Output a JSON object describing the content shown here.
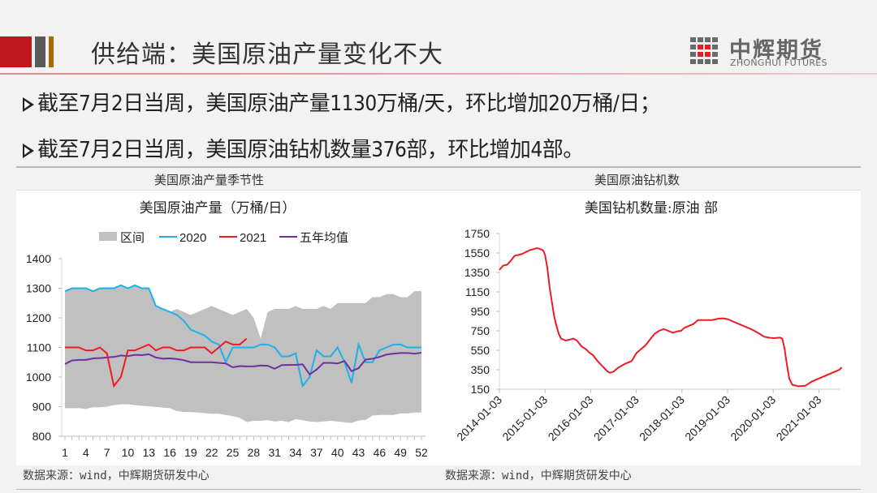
{
  "header": {
    "title": "供给端：美国原油产量变化不大",
    "logo_cn": "中辉期货",
    "logo_en": "ZHONGHUI FUTURES",
    "accent_colors": {
      "red": "#c0151c",
      "gray": "#595959",
      "gold": "#a46a00"
    }
  },
  "bullets": [
    {
      "text": "截至7月2日当周，美国原油产量1130万桶/天，环比增加20万桶/日；"
    },
    {
      "text": "截至7月2日当周，美国原油钻机数量376部，环比增加4部。"
    }
  ],
  "captions": {
    "left": "美国原油产量季节性",
    "right": "美国原油钻机数"
  },
  "sources": {
    "left": "数据来源：wind，中辉期货研发中心",
    "right": "数据来源：wind，中辉期货研发中心"
  },
  "chart_data": [
    {
      "type": "line",
      "title": "美国原油产量（万桶/日）",
      "xlabel": "",
      "ylabel": "",
      "ylim": [
        800,
        1400
      ],
      "yticks": [
        800,
        900,
        1000,
        1100,
        1200,
        1300,
        1400
      ],
      "xticks": [
        1,
        4,
        7,
        10,
        13,
        16,
        19,
        22,
        25,
        28,
        31,
        34,
        37,
        40,
        43,
        46,
        49,
        52
      ],
      "legend": [
        "区间",
        "2020",
        "2021",
        "五年均值"
      ],
      "legend_position": "top",
      "grid": false,
      "x": [
        1,
        2,
        3,
        4,
        5,
        6,
        7,
        8,
        9,
        10,
        11,
        12,
        13,
        14,
        15,
        16,
        17,
        18,
        19,
        20,
        21,
        22,
        23,
        24,
        25,
        26,
        27,
        28,
        29,
        30,
        31,
        32,
        33,
        34,
        35,
        36,
        37,
        38,
        39,
        40,
        41,
        42,
        43,
        44,
        45,
        46,
        47,
        48,
        49,
        50,
        51,
        52
      ],
      "range_band": {
        "name": "区间",
        "color": "#c0c0c0",
        "upper": [
          1290,
          1300,
          1300,
          1300,
          1290,
          1300,
          1300,
          1300,
          1310,
          1300,
          1310,
          1300,
          1300,
          1240,
          1230,
          1220,
          1230,
          1220,
          1210,
          1220,
          1230,
          1240,
          1230,
          1220,
          1210,
          1220,
          1230,
          1200,
          1130,
          1220,
          1230,
          1230,
          1230,
          1240,
          1230,
          1230,
          1230,
          1240,
          1230,
          1250,
          1250,
          1250,
          1250,
          1250,
          1270,
          1270,
          1280,
          1280,
          1270,
          1270,
          1290,
          1290
        ],
        "lower": [
          895,
          895,
          895,
          892,
          898,
          898,
          900,
          905,
          908,
          908,
          905,
          903,
          901,
          899,
          897,
          895,
          885,
          882,
          882,
          880,
          878,
          876,
          876,
          872,
          868,
          862,
          848,
          852,
          852,
          854,
          850,
          852,
          848,
          858,
          854,
          850,
          848,
          850,
          852,
          850,
          847,
          845,
          853,
          855,
          870,
          872,
          872,
          872,
          877,
          877,
          880,
          880
        ]
      },
      "series": [
        {
          "name": "2020",
          "color": "#1eb0e8",
          "values": [
            1290,
            1300,
            1300,
            1300,
            1290,
            1300,
            1300,
            1300,
            1310,
            1300,
            1310,
            1300,
            1300,
            1240,
            1230,
            1220,
            1210,
            1190,
            1160,
            1150,
            1140,
            1120,
            1110,
            1050,
            1100,
            1100,
            1100,
            1100,
            1110,
            1110,
            1100,
            1070,
            1070,
            1080,
            970,
            1000,
            1090,
            1070,
            1070,
            1100,
            1050,
            980,
            1110,
            1050,
            1050,
            1090,
            1100,
            1110,
            1110,
            1100,
            1100,
            1100
          ]
        },
        {
          "name": "2021",
          "color": "#ee1b24",
          "values": [
            1100,
            1100,
            1100,
            1090,
            1090,
            1100,
            1080,
            970,
            1000,
            1090,
            1090,
            1100,
            1110,
            1090,
            1100,
            1100,
            1090,
            1090,
            1100,
            1100,
            1100,
            1080,
            1100,
            1120,
            1110,
            1110,
            1130
          ]
        },
        {
          "name": "五年均值",
          "color": "#7030a0",
          "values": [
            1044,
            1056,
            1058,
            1058,
            1063,
            1064,
            1066,
            1068,
            1073,
            1071,
            1075,
            1074,
            1077,
            1066,
            1062,
            1063,
            1061,
            1057,
            1050,
            1050,
            1050,
            1050,
            1048,
            1046,
            1033,
            1037,
            1036,
            1036,
            1039,
            1038,
            1028,
            1040,
            1041,
            1041,
            1043,
            1009,
            1025,
            1048,
            1048,
            1046,
            1054,
            1020,
            1030,
            1059,
            1062,
            1068,
            1076,
            1079,
            1081,
            1081,
            1079,
            1082
          ]
        }
      ]
    },
    {
      "type": "line",
      "title": "美国钻机数量:原油 部",
      "xlabel": "",
      "ylabel": "",
      "ylim": [
        150,
        1750
      ],
      "yticks": [
        150,
        350,
        550,
        750,
        950,
        1150,
        1350,
        1550,
        1750
      ],
      "xticks": [
        "2014-01-03",
        "2015-01-03",
        "2016-01-03",
        "2017-01-03",
        "2018-01-03",
        "2019-01-03",
        "2020-01-03",
        "2021-01-03"
      ],
      "grid": false,
      "series": [
        {
          "name": "美国钻机数量:原油",
          "color": "#ee1b24",
          "points": [
            [
              2014.0,
              1375
            ],
            [
              2014.08,
              1420
            ],
            [
              2014.17,
              1430
            ],
            [
              2014.25,
              1470
            ],
            [
              2014.33,
              1520
            ],
            [
              2014.42,
              1530
            ],
            [
              2014.5,
              1540
            ],
            [
              2014.58,
              1560
            ],
            [
              2014.67,
              1580
            ],
            [
              2014.75,
              1590
            ],
            [
              2014.83,
              1600
            ],
            [
              2014.9,
              1590
            ],
            [
              2014.96,
              1575
            ],
            [
              2015.0,
              1530
            ],
            [
              2015.05,
              1400
            ],
            [
              2015.1,
              1200
            ],
            [
              2015.15,
              1050
            ],
            [
              2015.2,
              900
            ],
            [
              2015.25,
              800
            ],
            [
              2015.3,
              720
            ],
            [
              2015.35,
              670
            ],
            [
              2015.45,
              650
            ],
            [
              2015.55,
              660
            ],
            [
              2015.62,
              670
            ],
            [
              2015.7,
              650
            ],
            [
              2015.8,
              590
            ],
            [
              2015.9,
              560
            ],
            [
              2015.96,
              530
            ],
            [
              2016.05,
              500
            ],
            [
              2016.15,
              440
            ],
            [
              2016.25,
              390
            ],
            [
              2016.35,
              340
            ],
            [
              2016.42,
              318
            ],
            [
              2016.5,
              330
            ],
            [
              2016.6,
              370
            ],
            [
              2016.75,
              410
            ],
            [
              2016.9,
              440
            ],
            [
              2017.0,
              520
            ],
            [
              2017.1,
              560
            ],
            [
              2017.2,
              600
            ],
            [
              2017.3,
              660
            ],
            [
              2017.4,
              720
            ],
            [
              2017.5,
              750
            ],
            [
              2017.6,
              768
            ],
            [
              2017.7,
              750
            ],
            [
              2017.8,
              730
            ],
            [
              2017.9,
              745
            ],
            [
              2017.98,
              750
            ],
            [
              2018.05,
              780
            ],
            [
              2018.15,
              800
            ],
            [
              2018.25,
              820
            ],
            [
              2018.35,
              860
            ],
            [
              2018.5,
              860
            ],
            [
              2018.65,
              860
            ],
            [
              2018.8,
              875
            ],
            [
              2018.9,
              878
            ],
            [
              2019.0,
              870
            ],
            [
              2019.1,
              850
            ],
            [
              2019.25,
              820
            ],
            [
              2019.4,
              790
            ],
            [
              2019.55,
              760
            ],
            [
              2019.7,
              720
            ],
            [
              2019.8,
              690
            ],
            [
              2019.9,
              680
            ],
            [
              2020.0,
              675
            ],
            [
              2020.15,
              680
            ],
            [
              2020.2,
              670
            ],
            [
              2020.25,
              560
            ],
            [
              2020.3,
              400
            ],
            [
              2020.35,
              260
            ],
            [
              2020.42,
              195
            ],
            [
              2020.55,
              180
            ],
            [
              2020.7,
              185
            ],
            [
              2020.85,
              230
            ],
            [
              2021.0,
              260
            ],
            [
              2021.15,
              290
            ],
            [
              2021.3,
              320
            ],
            [
              2021.45,
              350
            ],
            [
              2021.5,
              376
            ]
          ]
        }
      ]
    }
  ]
}
